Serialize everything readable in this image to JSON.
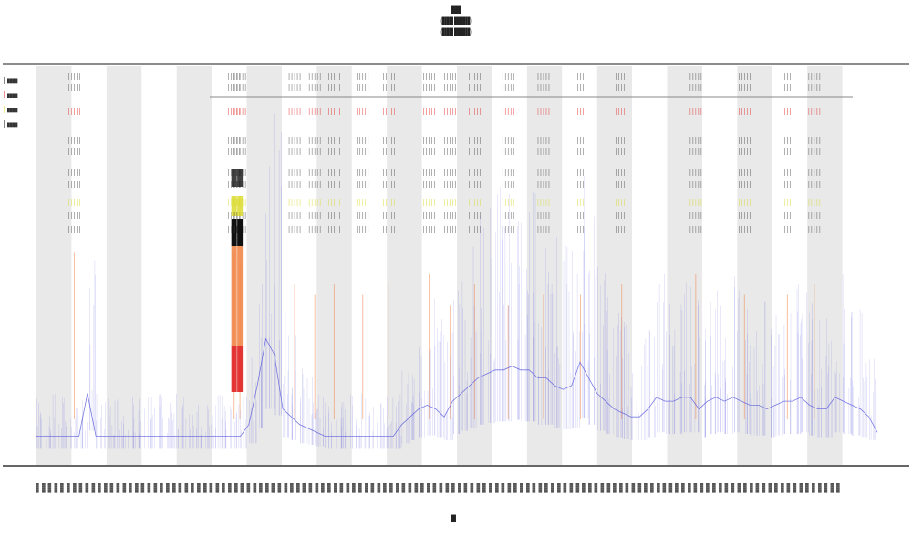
{
  "header": {
    "title": "████",
    "subtitle_1": "(█████ ███████)",
    "subtitle_2": "(█████ ███████)"
  },
  "chart_data": {
    "type": "area",
    "title": "████",
    "xlabel": "█",
    "ylabel": "",
    "grid": false,
    "legend_position": "top-left",
    "legend": [
      "████",
      "████",
      "████",
      "████"
    ],
    "x_range": [
      0,
      10000
    ],
    "y_range": [
      0,
      1
    ],
    "band_count": 24,
    "colors": {
      "coverage": "#5a5adc",
      "track_dark": "#111111",
      "track_yellow": "#d8d820",
      "track_orange": "#f08040",
      "track_red": "#e02020",
      "band": "#e9e9e9"
    },
    "series": [
      {
        "name": "████",
        "kind": "coverage profile",
        "values": [
          0.05,
          0.05,
          0.05,
          0.05,
          0.05,
          0.05,
          0.16,
          0.05,
          0.05,
          0.05,
          0.05,
          0.05,
          0.05,
          0.05,
          0.05,
          0.05,
          0.05,
          0.05,
          0.05,
          0.05,
          0.05,
          0.05,
          0.05,
          0.05,
          0.05,
          0.08,
          0.18,
          0.3,
          0.26,
          0.12,
          0.1,
          0.08,
          0.07,
          0.06,
          0.05,
          0.05,
          0.05,
          0.05,
          0.05,
          0.05,
          0.05,
          0.05,
          0.05,
          0.08,
          0.1,
          0.12,
          0.13,
          0.12,
          0.1,
          0.14,
          0.16,
          0.18,
          0.2,
          0.21,
          0.22,
          0.22,
          0.23,
          0.22,
          0.22,
          0.2,
          0.2,
          0.18,
          0.17,
          0.18,
          0.24,
          0.2,
          0.16,
          0.14,
          0.12,
          0.11,
          0.1,
          0.1,
          0.12,
          0.15,
          0.14,
          0.14,
          0.15,
          0.15,
          0.12,
          0.14,
          0.15,
          0.14,
          0.15,
          0.14,
          0.13,
          0.13,
          0.12,
          0.13,
          0.14,
          0.14,
          0.15,
          0.13,
          0.12,
          0.12,
          0.15,
          0.14,
          0.13,
          0.12,
          0.1,
          0.06
        ]
      }
    ],
    "track_columns": [
      {
        "x": 4.5,
        "height": 0.95,
        "colors": [
          "dark",
          "orange"
        ]
      },
      {
        "x": 23.5,
        "height": 0.95,
        "colors": [
          "dark",
          "yellow",
          "orange",
          "red"
        ]
      },
      {
        "x": 24.2,
        "height": 0.9,
        "colors": [
          "dark",
          "yellow",
          "orange",
          "red"
        ]
      },
      {
        "x": 30.7,
        "height": 0.8,
        "colors": [
          "dark",
          "orange"
        ]
      },
      {
        "x": 33.1,
        "height": 0.75,
        "colors": [
          "dark",
          "orange"
        ]
      },
      {
        "x": 35.4,
        "height": 0.8,
        "colors": [
          "dark",
          "orange"
        ]
      },
      {
        "x": 38.8,
        "height": 0.75,
        "colors": [
          "dark",
          "orange"
        ]
      },
      {
        "x": 41.9,
        "height": 0.8,
        "colors": [
          "dark",
          "orange"
        ]
      },
      {
        "x": 46.7,
        "height": 0.85,
        "colors": [
          "dark",
          "orange"
        ]
      },
      {
        "x": 49.2,
        "height": 0.7,
        "colors": [
          "dark",
          "orange"
        ]
      },
      {
        "x": 52.1,
        "height": 0.8,
        "colors": [
          "dark",
          "orange"
        ]
      },
      {
        "x": 56.1,
        "height": 0.7,
        "colors": [
          "dark",
          "orange"
        ]
      },
      {
        "x": 60.3,
        "height": 0.75,
        "colors": [
          "dark",
          "orange"
        ]
      },
      {
        "x": 64.7,
        "height": 0.75,
        "colors": [
          "dark",
          "orange"
        ]
      },
      {
        "x": 69.6,
        "height": 0.8,
        "colors": [
          "dark",
          "orange"
        ]
      },
      {
        "x": 78.4,
        "height": 0.85,
        "colors": [
          "dark",
          "yellow",
          "orange"
        ]
      },
      {
        "x": 84.2,
        "height": 0.75,
        "colors": [
          "dark",
          "orange"
        ]
      },
      {
        "x": 89.3,
        "height": 0.75,
        "colors": [
          "dark",
          "orange"
        ]
      },
      {
        "x": 92.5,
        "height": 0.8,
        "colors": [
          "dark",
          "orange"
        ]
      }
    ]
  }
}
